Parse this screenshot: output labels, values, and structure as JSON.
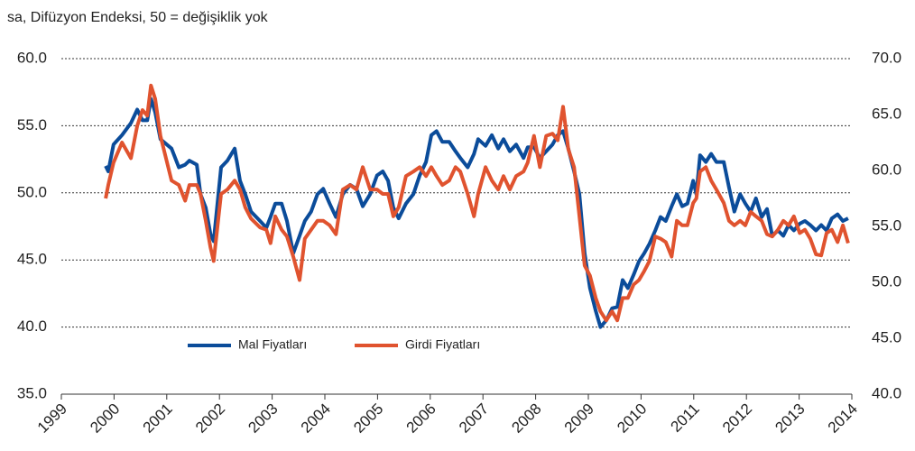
{
  "chart_data": {
    "type": "line",
    "subtitle": "sa, Difüzyon Endeksi, 50 = değişiklik yok",
    "x": [
      1999.84,
      1999.89,
      1999.99,
      2000.15,
      2000.32,
      2000.44,
      2000.54,
      2000.63,
      2000.7,
      2000.78,
      2000.88,
      2001.09,
      2001.23,
      2001.35,
      2001.43,
      2001.57,
      2001.64,
      2001.74,
      2001.83,
      2001.89,
      2002.03,
      2002.15,
      2002.29,
      2002.39,
      2002.49,
      2002.6,
      2002.77,
      2002.89,
      2002.97,
      2003.06,
      2003.18,
      2003.28,
      2003.4,
      2003.52,
      2003.62,
      2003.74,
      2003.86,
      2003.97,
      2004.09,
      2004.21,
      2004.34,
      2004.48,
      2004.6,
      2004.72,
      2004.86,
      2004.99,
      2005.1,
      2005.2,
      2005.3,
      2005.4,
      2005.54,
      2005.68,
      2005.8,
      2005.92,
      2006.02,
      2006.12,
      2006.23,
      2006.36,
      2006.48,
      2006.57,
      2006.71,
      2006.83,
      2006.91,
      2007.05,
      2007.17,
      2007.29,
      2007.39,
      2007.51,
      2007.63,
      2007.77,
      2007.85,
      2007.97,
      2008.08,
      2008.2,
      2008.32,
      2008.42,
      2008.52,
      2008.62,
      2008.73,
      2008.83,
      2008.93,
      2009.03,
      2009.14,
      2009.23,
      2009.34,
      2009.45,
      2009.55,
      2009.65,
      2009.75,
      2009.86,
      2009.96,
      2010.06,
      2010.16,
      2010.27,
      2010.37,
      2010.47,
      2010.58,
      2010.68,
      2010.78,
      2010.88,
      2010.99,
      2011.05,
      2011.12,
      2011.23,
      2011.33,
      2011.43,
      2011.57,
      2011.67,
      2011.77,
      2011.88,
      2011.98,
      2012.08,
      2012.18,
      2012.29,
      2012.39,
      2012.49,
      2012.6,
      2012.7,
      2012.8,
      2012.9,
      2013.01,
      2013.11,
      2013.21,
      2013.32,
      2013.42,
      2013.52,
      2013.62,
      2013.73,
      2013.83,
      2013.93
    ],
    "series": [
      {
        "name": "Mal Fiyatları",
        "color": "#0b4c9a",
        "axis": "y",
        "values": [
          52.0,
          51.6,
          53.6,
          54.3,
          55.2,
          56.2,
          55.4,
          55.4,
          57.0,
          56.0,
          54.0,
          53.3,
          51.9,
          52.1,
          52.4,
          52.1,
          49.9,
          48.9,
          46.9,
          46.4,
          51.9,
          52.4,
          53.3,
          50.9,
          49.9,
          48.6,
          47.9,
          47.4,
          48.2,
          49.2,
          49.2,
          47.9,
          45.5,
          46.8,
          47.9,
          48.6,
          49.9,
          50.3,
          49.2,
          48.2,
          49.9,
          50.6,
          50.3,
          49.0,
          49.9,
          51.3,
          51.6,
          50.9,
          48.9,
          48.1,
          49.2,
          49.9,
          51.3,
          52.3,
          54.3,
          54.6,
          53.8,
          53.8,
          53.1,
          52.6,
          51.9,
          52.9,
          54.0,
          53.5,
          54.3,
          53.3,
          54.0,
          53.1,
          53.6,
          52.6,
          53.4,
          53.4,
          52.6,
          53.1,
          53.6,
          54.3,
          54.6,
          53.3,
          51.6,
          49.9,
          45.5,
          42.9,
          41.2,
          40.0,
          40.5,
          41.4,
          41.5,
          43.5,
          42.9,
          43.9,
          44.9,
          45.5,
          46.2,
          47.2,
          48.2,
          47.9,
          49.0,
          49.9,
          49.0,
          49.2,
          50.9,
          49.9,
          52.8,
          52.3,
          52.9,
          52.3,
          52.3,
          50.4,
          48.6,
          49.9,
          49.2,
          48.6,
          49.6,
          48.2,
          48.8,
          46.8,
          47.2,
          46.8,
          47.6,
          47.2,
          47.7,
          47.9,
          47.6,
          47.2,
          47.6,
          47.2,
          48.1,
          48.4,
          47.9,
          48.1
        ]
      },
      {
        "name": "Girdi Fiyatları",
        "color": "#e0532f",
        "axis": "y2",
        "values": [
          57.5,
          58.7,
          60.7,
          62.5,
          61.1,
          64.0,
          65.4,
          64.9,
          67.6,
          66.4,
          63.1,
          59.1,
          58.7,
          57.3,
          58.7,
          58.7,
          57.9,
          55.5,
          53.1,
          51.9,
          57.9,
          58.3,
          59.1,
          58.3,
          56.7,
          55.7,
          54.9,
          54.7,
          53.5,
          55.9,
          54.7,
          54.1,
          52.3,
          50.2,
          53.9,
          54.7,
          55.5,
          55.5,
          55.1,
          54.3,
          58.3,
          58.7,
          58.3,
          60.3,
          58.3,
          58.3,
          57.9,
          57.9,
          55.9,
          56.7,
          59.5,
          59.9,
          60.3,
          59.5,
          60.3,
          59.5,
          58.7,
          59.1,
          60.3,
          59.9,
          57.9,
          55.9,
          57.9,
          60.3,
          59.1,
          58.3,
          59.5,
          58.3,
          59.5,
          59.9,
          60.7,
          63.1,
          60.3,
          63.1,
          63.3,
          62.7,
          65.7,
          61.9,
          60.3,
          55.9,
          51.5,
          50.6,
          48.6,
          47.4,
          46.6,
          47.4,
          46.6,
          48.6,
          48.6,
          49.8,
          50.2,
          51.0,
          51.9,
          54.1,
          53.9,
          53.6,
          52.3,
          55.5,
          55.1,
          55.1,
          57.1,
          57.5,
          59.9,
          60.3,
          59.1,
          58.3,
          57.1,
          55.5,
          55.1,
          55.5,
          55.1,
          56.3,
          55.9,
          55.5,
          54.3,
          54.1,
          54.7,
          55.5,
          55.1,
          55.9,
          54.4,
          54.7,
          53.9,
          52.5,
          52.4,
          54.4,
          54.7,
          53.6,
          55.1,
          53.5
        ]
      }
    ],
    "xlim": [
      1999,
      2014
    ],
    "xticks": [
      1999,
      2000,
      2001,
      2002,
      2003,
      2004,
      2005,
      2006,
      2007,
      2008,
      2009,
      2010,
      2011,
      2012,
      2013,
      2014
    ],
    "ylim": [
      35,
      60
    ],
    "yticks": [
      {
        "value": 35,
        "label": "35.0"
      },
      {
        "value": 40,
        "label": "40.0"
      },
      {
        "value": 45,
        "label": "45.0"
      },
      {
        "value": 50,
        "label": "50.0"
      },
      {
        "value": 55,
        "label": "55.0"
      },
      {
        "value": 60,
        "label": "60.0"
      }
    ],
    "y2lim": [
      40,
      70
    ],
    "y2ticks": [
      {
        "value": 40,
        "label": "40.0"
      },
      {
        "value": 45,
        "label": "45.0"
      },
      {
        "value": 50,
        "label": "50.0"
      },
      {
        "value": 55,
        "label": "55.0"
      },
      {
        "value": 60,
        "label": "60.0"
      },
      {
        "value": 65,
        "label": "65.0"
      },
      {
        "value": 70,
        "label": "70.0"
      }
    ],
    "grid": true,
    "legend": "lower left"
  }
}
